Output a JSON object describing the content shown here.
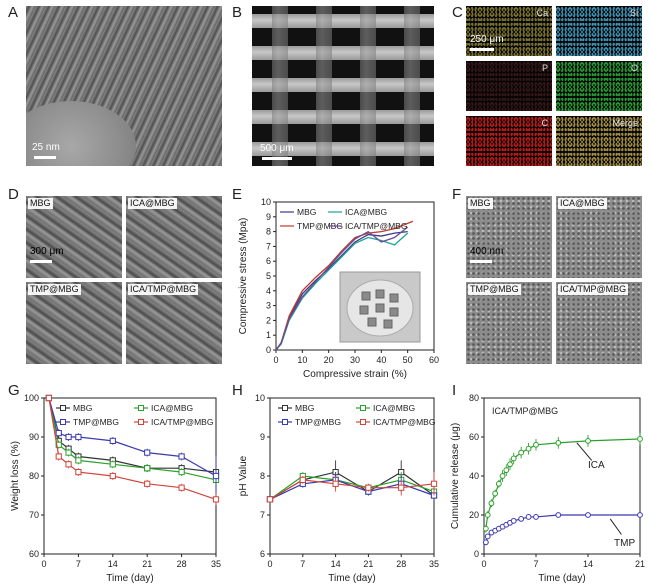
{
  "panels": {
    "A": {
      "letter": "A",
      "scale": "25 nm"
    },
    "B": {
      "letter": "B",
      "scale": "500 μm"
    },
    "C": {
      "letter": "C",
      "scale": "250 μm",
      "tiles": [
        {
          "label": "Ca",
          "color": "#d9c85a"
        },
        {
          "label": "Si",
          "color": "#4aa3c9"
        },
        {
          "label": "P",
          "color": "#c24a4a"
        },
        {
          "label": "O",
          "color": "#2fae3c"
        },
        {
          "label": "C",
          "color": "#d81f1f"
        },
        {
          "label": "Merge",
          "color": "#b6a050"
        }
      ]
    },
    "D": {
      "letter": "D",
      "scale": "300 μm",
      "tiles": [
        "MBG",
        "ICA@MBG",
        "TMP@MBG",
        "ICA/TMP@MBG"
      ]
    },
    "E": {
      "letter": "E"
    },
    "F": {
      "letter": "F",
      "scale": "400 nm",
      "tiles": [
        "MBG",
        "ICA@MBG",
        "TMP@MBG",
        "ICA/TMP@MBG"
      ]
    },
    "G": {
      "letter": "G"
    },
    "H": {
      "letter": "H"
    },
    "I": {
      "letter": "I"
    }
  },
  "chart_data": [
    {
      "id": "E",
      "type": "line",
      "xlabel": "Compressive strain (%)",
      "ylabel": "Compressive stress (Mpa)",
      "xlim": [
        0,
        60
      ],
      "ylim": [
        0,
        10
      ],
      "xticks": [
        0,
        10,
        20,
        30,
        40,
        50,
        60
      ],
      "yticks": [
        0,
        1,
        2,
        3,
        4,
        5,
        6,
        7,
        8,
        9,
        10
      ],
      "legend": "top-left",
      "series": [
        {
          "name": "MBG",
          "color": "#3a3a8a",
          "x": [
            0,
            2,
            5,
            10,
            15,
            20,
            25,
            30,
            35,
            40,
            45,
            50
          ],
          "y": [
            0,
            0.5,
            2.2,
            3.8,
            4.7,
            5.5,
            6.4,
            7.3,
            7.8,
            7.7,
            7.9,
            8.0
          ]
        },
        {
          "name": "ICA@MBG",
          "color": "#1aa39a",
          "x": [
            0,
            2,
            5,
            10,
            15,
            20,
            25,
            30,
            35,
            40,
            45,
            50
          ],
          "y": [
            0,
            0.4,
            2.0,
            3.5,
            4.5,
            5.4,
            6.3,
            7.2,
            7.6,
            7.4,
            7.1,
            7.9
          ]
        },
        {
          "name": "TMP@MBG",
          "color": "#c0392b",
          "x": [
            0,
            2,
            5,
            10,
            15,
            20,
            25,
            30,
            35,
            40,
            45,
            52
          ],
          "y": [
            0,
            0.5,
            2.3,
            4.0,
            4.9,
            5.7,
            6.7,
            7.6,
            7.9,
            8.0,
            8.2,
            8.7
          ]
        },
        {
          "name": "ICA/TMP@MBG",
          "color": "#6a4c93",
          "x": [
            0,
            2,
            5,
            10,
            15,
            20,
            25,
            30,
            35,
            40,
            45,
            50
          ],
          "y": [
            0,
            0.5,
            2.1,
            3.6,
            4.6,
            5.6,
            6.6,
            7.5,
            8.0,
            7.3,
            7.6,
            8.3
          ]
        }
      ]
    },
    {
      "id": "G",
      "type": "line",
      "xlabel": "Time (day)",
      "ylabel": "Weight loss (%)",
      "xlim": [
        0,
        35
      ],
      "ylim": [
        60,
        100
      ],
      "xticks": [
        0,
        7,
        14,
        21,
        28,
        35
      ],
      "yticks": [
        60,
        70,
        80,
        90,
        100
      ],
      "legend": "top",
      "series": [
        {
          "name": "MBG",
          "color": "#333333",
          "x": [
            1,
            3,
            5,
            7,
            14,
            21,
            28,
            35
          ],
          "y": [
            100,
            89,
            87,
            85,
            84,
            82,
            82,
            81
          ],
          "err": [
            0.5,
            1,
            1,
            1,
            1,
            1,
            1,
            1.5
          ]
        },
        {
          "name": "ICA@MBG",
          "color": "#2ca02c",
          "x": [
            1,
            3,
            5,
            7,
            14,
            21,
            28,
            35
          ],
          "y": [
            100,
            88,
            86,
            84,
            83,
            82,
            81,
            79
          ],
          "err": [
            0.5,
            1,
            1,
            1,
            1,
            1,
            1,
            1.5
          ]
        },
        {
          "name": "TMP@MBG",
          "color": "#3a3ab0",
          "x": [
            1,
            3,
            5,
            7,
            14,
            21,
            28,
            35
          ],
          "y": [
            100,
            91,
            90,
            90,
            89,
            86,
            85,
            80
          ],
          "err": [
            0.5,
            1,
            1,
            1,
            1,
            1,
            1,
            5
          ]
        },
        {
          "name": "ICA/TMP@MBG",
          "color": "#d0453a",
          "x": [
            1,
            3,
            5,
            7,
            14,
            21,
            28,
            35
          ],
          "y": [
            100,
            85,
            83,
            81,
            80,
            78,
            77,
            74
          ],
          "err": [
            0.5,
            1,
            1,
            1,
            1,
            1,
            1,
            1.5
          ]
        }
      ]
    },
    {
      "id": "H",
      "type": "line",
      "xlabel": "Time (day)",
      "ylabel": "pH Value",
      "xlim": [
        0,
        35
      ],
      "ylim": [
        6,
        10
      ],
      "xticks": [
        0,
        7,
        14,
        21,
        28,
        35
      ],
      "yticks": [
        6,
        7,
        8,
        9,
        10
      ],
      "legend": "top",
      "series": [
        {
          "name": "MBG",
          "color": "#333333",
          "x": [
            0,
            7,
            14,
            21,
            28,
            35
          ],
          "y": [
            7.4,
            7.9,
            8.1,
            7.6,
            8.1,
            7.5
          ],
          "err": [
            0.05,
            0.1,
            0.3,
            0.1,
            0.3,
            0.1
          ]
        },
        {
          "name": "ICA@MBG",
          "color": "#2ca02c",
          "x": [
            0,
            7,
            14,
            21,
            28,
            35
          ],
          "y": [
            7.4,
            8.0,
            7.9,
            7.7,
            7.9,
            7.6
          ],
          "err": [
            0.05,
            0.1,
            0.2,
            0.1,
            0.2,
            0.1
          ]
        },
        {
          "name": "TMP@MBG",
          "color": "#3a3ab0",
          "x": [
            0,
            7,
            14,
            21,
            28,
            35
          ],
          "y": [
            7.4,
            7.8,
            7.9,
            7.6,
            7.8,
            7.5
          ],
          "err": [
            0.05,
            0.1,
            0.2,
            0.1,
            0.2,
            0.1
          ]
        },
        {
          "name": "ICA/TMP@MBG",
          "color": "#d0453a",
          "x": [
            0,
            7,
            14,
            21,
            28,
            35
          ],
          "y": [
            7.4,
            7.9,
            7.8,
            7.7,
            7.7,
            7.8
          ],
          "err": [
            0.05,
            0.1,
            0.2,
            0.1,
            0.2,
            0.3
          ]
        }
      ]
    },
    {
      "id": "I",
      "type": "line",
      "title": "ICA/TMP@MBG",
      "xlabel": "Time (day)",
      "ylabel": "Cumulative release (μg)",
      "xlim": [
        0,
        21
      ],
      "ylim": [
        0,
        80
      ],
      "xticks": [
        0,
        7,
        14,
        21
      ],
      "yticks": [
        0,
        20,
        40,
        60,
        80
      ],
      "series": [
        {
          "name": "ICA",
          "color": "#2ca02c",
          "x": [
            0.25,
            0.5,
            1,
            1.5,
            2,
            2.5,
            3,
            3.5,
            4,
            5,
            6,
            7,
            10,
            14,
            21
          ],
          "y": [
            13,
            20,
            26,
            31,
            36,
            40,
            43,
            46,
            49,
            52,
            54,
            56,
            57,
            58,
            59
          ],
          "err": [
            2,
            2,
            2,
            2,
            2,
            3,
            3,
            3,
            3,
            3,
            3,
            3,
            3,
            3,
            3
          ]
        },
        {
          "name": "TMP",
          "color": "#3a3ab0",
          "x": [
            0.25,
            0.5,
            1,
            1.5,
            2,
            2.5,
            3,
            3.5,
            4,
            5,
            6,
            7,
            10,
            14,
            21
          ],
          "y": [
            6,
            9,
            11,
            12,
            13,
            14,
            15,
            16,
            17,
            18,
            19,
            19,
            20,
            20,
            20
          ],
          "err": [
            1,
            1,
            1,
            1,
            1,
            1,
            1,
            1,
            1,
            1,
            1,
            1,
            1,
            1,
            1
          ]
        }
      ]
    }
  ]
}
